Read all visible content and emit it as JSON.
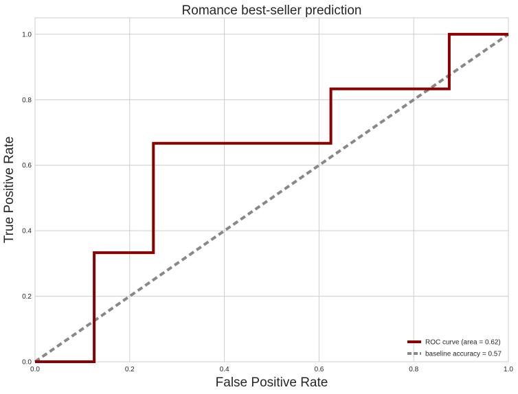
{
  "chart_data": {
    "type": "line",
    "title": "Romance best-seller prediction",
    "xlabel": "False Positive Rate",
    "ylabel": "True Positive Rate",
    "xlim": [
      0.0,
      1.0
    ],
    "ylim": [
      0.0,
      1.05
    ],
    "x_ticks": [
      0.0,
      0.2,
      0.4,
      0.6,
      0.8,
      1.0
    ],
    "x_tick_labels": [
      "0.0",
      "0.2",
      "0.4",
      "0.6",
      "0.8",
      "1.0"
    ],
    "y_ticks": [
      0.0,
      0.2,
      0.4,
      0.6,
      0.8,
      1.0
    ],
    "y_tick_labels": [
      "0.0",
      "0.2",
      "0.4",
      "0.6",
      "0.8",
      "1.0"
    ],
    "grid": true,
    "legend_position": "bottom-right",
    "series": [
      {
        "name": "ROC curve (area = 0.62)",
        "color": "#8b0000",
        "style": "solid",
        "step": true,
        "x": [
          0.0,
          0.125,
          0.125,
          0.25,
          0.25,
          0.625,
          0.625,
          0.875,
          0.875,
          1.0
        ],
        "y": [
          0.0,
          0.0,
          0.333,
          0.333,
          0.667,
          0.667,
          0.833,
          0.833,
          1.0,
          1.0
        ]
      },
      {
        "name": "baseline accuracy = 0.57",
        "color": "#888888",
        "style": "dashed",
        "step": false,
        "x": [
          0.0,
          1.0
        ],
        "y": [
          0.0,
          1.0
        ]
      }
    ]
  }
}
